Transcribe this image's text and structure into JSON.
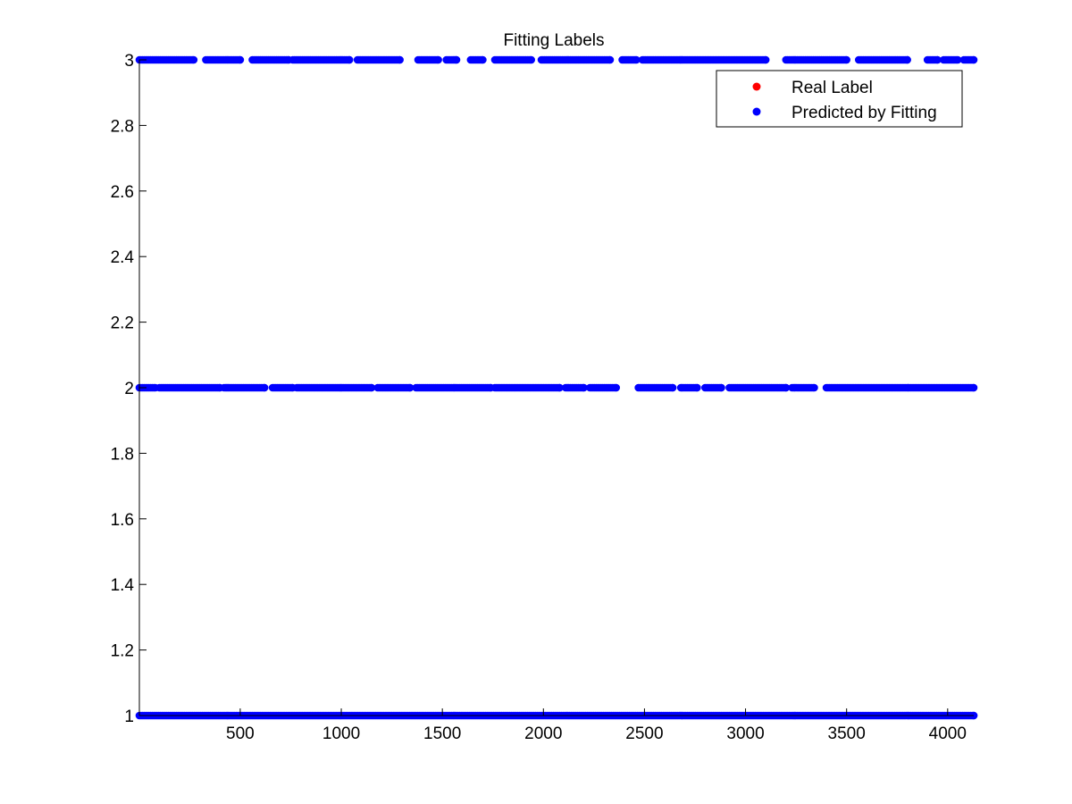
{
  "chart_data": {
    "type": "scatter",
    "title": "Fitting Labels",
    "xlabel": "",
    "ylabel": "",
    "xlim": [
      1,
      4129
    ],
    "ylim": [
      1,
      3
    ],
    "x_ticks": [
      500,
      1000,
      1500,
      2000,
      2500,
      3000,
      3500,
      4000
    ],
    "y_ticks": [
      "1",
      "1.2",
      "1.4",
      "1.6",
      "1.8",
      "2",
      "2.2",
      "2.4",
      "2.6",
      "2.8",
      "3"
    ],
    "grid": false,
    "legend_position": "top-right",
    "series": [
      {
        "name": "Real Label",
        "color": "#ff0000",
        "marker": "circle",
        "note_visible": "fully covered by predicted markers",
        "levels": [
          1,
          2,
          3
        ]
      },
      {
        "name": "Predicted by Fitting",
        "color": "#0000ff",
        "marker": "circle",
        "levels": [
          {
            "y": 1,
            "ranges": [
              [
                1,
                4129
              ]
            ]
          },
          {
            "y": 2,
            "ranges": [
              [
                1,
                80
              ],
              [
                100,
                400
              ],
              [
                420,
                620
              ],
              [
                660,
                760
              ],
              [
                780,
                1150
              ],
              [
                1180,
                1340
              ],
              [
                1370,
                1740
              ],
              [
                1760,
                2080
              ],
              [
                2110,
                2200
              ],
              [
                2230,
                2360
              ],
              [
                2470,
                2640
              ],
              [
                2680,
                2760
              ],
              [
                2800,
                2880
              ],
              [
                2920,
                3200
              ],
              [
                3230,
                3340
              ],
              [
                3400,
                4129
              ]
            ]
          },
          {
            "y": 3,
            "ranges": [
              [
                1,
                270
              ],
              [
                330,
                500
              ],
              [
                560,
                740
              ],
              [
                760,
                1040
              ],
              [
                1080,
                1290
              ],
              [
                1380,
                1480
              ],
              [
                1520,
                1570
              ],
              [
                1640,
                1700
              ],
              [
                1760,
                1940
              ],
              [
                1990,
                2330
              ],
              [
                2390,
                2460
              ],
              [
                2490,
                3100
              ],
              [
                3200,
                3500
              ],
              [
                3560,
                3800
              ],
              [
                3900,
                3950
              ],
              [
                3980,
                4050
              ],
              [
                4080,
                4129
              ]
            ]
          }
        ]
      }
    ]
  }
}
